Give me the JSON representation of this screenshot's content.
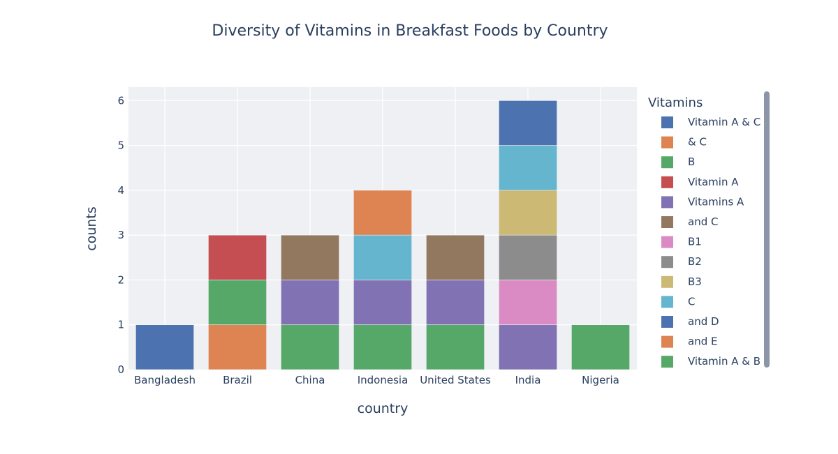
{
  "chart_data": {
    "type": "bar",
    "stacked": true,
    "title": "Diversity of Vitamins in Breakfast Foods by Country",
    "xlabel": "country",
    "ylabel": "counts",
    "ylim": [
      0,
      6.3
    ],
    "yticks": [
      0,
      1,
      2,
      3,
      4,
      5,
      6
    ],
    "grid": true,
    "legend_position": "right",
    "legend_title": "Vitamins",
    "categories": [
      "Bangladesh",
      "Brazil",
      "China",
      "Indonesia",
      "United States",
      "India",
      "Nigeria"
    ],
    "legend_entries": [
      {
        "label": "Vitamin A & C",
        "color": "#4c72b0"
      },
      {
        "label": "& C",
        "color": "#dd8452"
      },
      {
        "label": "B",
        "color": "#55a868"
      },
      {
        "label": "Vitamin A",
        "color": "#c44e52"
      },
      {
        "label": "Vitamins A",
        "color": "#8172b3"
      },
      {
        "label": "and C",
        "color": "#937860"
      },
      {
        "label": "B1",
        "color": "#da8bc3"
      },
      {
        "label": "B2",
        "color": "#8c8c8c"
      },
      {
        "label": "B3",
        "color": "#ccb974"
      },
      {
        "label": "C",
        "color": "#64b5cd"
      },
      {
        "label": "and D",
        "color": "#4c72b0"
      },
      {
        "label": "and E",
        "color": "#dd8452"
      },
      {
        "label": "Vitamin A & B",
        "color": "#55a868"
      }
    ],
    "stacks": [
      {
        "category": "Bangladesh",
        "segments": [
          {
            "value": 1,
            "color": "#4c72b0"
          }
        ]
      },
      {
        "category": "Brazil",
        "segments": [
          {
            "value": 1,
            "color": "#dd8452"
          },
          {
            "value": 1,
            "color": "#55a868"
          },
          {
            "value": 1,
            "color": "#c44e52"
          }
        ]
      },
      {
        "category": "China",
        "segments": [
          {
            "value": 1,
            "color": "#55a868"
          },
          {
            "value": 1,
            "color": "#8172b3"
          },
          {
            "value": 1,
            "color": "#937860"
          }
        ]
      },
      {
        "category": "Indonesia",
        "segments": [
          {
            "value": 1,
            "color": "#55a868"
          },
          {
            "value": 1,
            "color": "#8172b3"
          },
          {
            "value": 1,
            "color": "#64b5cd"
          },
          {
            "value": 1,
            "color": "#dd8452"
          }
        ]
      },
      {
        "category": "United States",
        "segments": [
          {
            "value": 1,
            "color": "#55a868"
          },
          {
            "value": 1,
            "color": "#8172b3"
          },
          {
            "value": 1,
            "color": "#937860"
          }
        ]
      },
      {
        "category": "India",
        "segments": [
          {
            "value": 1,
            "color": "#8172b3"
          },
          {
            "value": 1,
            "color": "#da8bc3"
          },
          {
            "value": 1,
            "color": "#8c8c8c"
          },
          {
            "value": 1,
            "color": "#ccb974"
          },
          {
            "value": 1,
            "color": "#64b5cd"
          },
          {
            "value": 1,
            "color": "#4c72b0"
          }
        ]
      },
      {
        "category": "Nigeria",
        "segments": [
          {
            "value": 1,
            "color": "#55a868"
          }
        ]
      }
    ]
  }
}
